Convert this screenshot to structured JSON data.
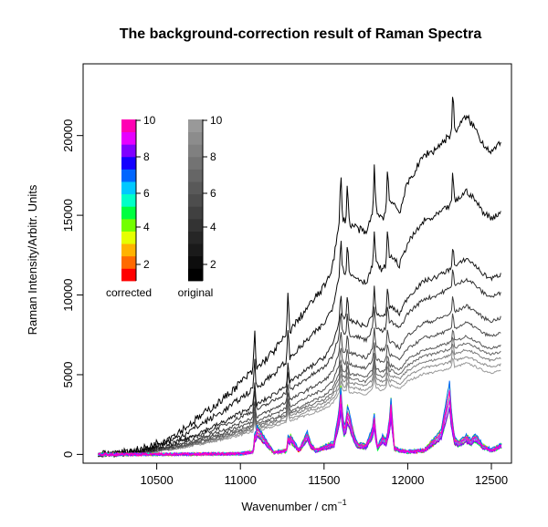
{
  "chart_data": {
    "type": "line",
    "title": "The background-correction result of Raman Spectra",
    "xlabel": "Wavenumber / cm",
    "xlabel_superscript": "−1",
    "ylabel": "Raman Intensity/Arbitr. Units",
    "xlim": [
      10060,
      12620
    ],
    "ylim": [
      -550,
      24500
    ],
    "xticks": [
      10500,
      11000,
      11500,
      12000,
      12500
    ],
    "xtick_labels": [
      "10500",
      "11000",
      "11500",
      "12000",
      "12500"
    ],
    "yticks": [
      0,
      5000,
      10000,
      15000,
      20000
    ],
    "ytick_labels": [
      "0",
      "5000",
      "10000",
      "15000",
      "20000"
    ],
    "grid": false,
    "legend": {
      "placement": "top-left",
      "colorbars": [
        {
          "label": "corrected",
          "ticks": [
            "2",
            "4",
            "6",
            "8",
            "10"
          ],
          "colors": [
            "#ff0000",
            "#ff6a00",
            "#ffb300",
            "#e5ff00",
            "#73ff00",
            "#00ff40",
            "#00ffc8",
            "#00c8ff",
            "#0066ff",
            "#1400ff",
            "#8000ff",
            "#e600ff",
            "#ff00b3"
          ]
        },
        {
          "label": "original",
          "ticks": [
            "2",
            "4",
            "6",
            "8",
            "10"
          ],
          "colors": [
            "#000000",
            "#0d0d0d",
            "#1a1a1a",
            "#262626",
            "#333333",
            "#404040",
            "#4d4d4d",
            "#595959",
            "#666666",
            "#737373",
            "#808080",
            "#8c8c8c",
            "#999999"
          ]
        }
      ]
    },
    "original_envelope": {
      "x": [
        10150,
        10300,
        10400,
        10500,
        10600,
        10700,
        10800,
        10900,
        11000,
        11050,
        11100,
        11200,
        11300,
        11400,
        11500,
        11550,
        11600,
        11630,
        11700,
        11750,
        11800,
        11850,
        11900,
        11950,
        12000,
        12100,
        12150,
        12200,
        12250,
        12300,
        12350,
        12400,
        12450,
        12500,
        12560
      ],
      "y": [
        0,
        100,
        300,
        700,
        1200,
        1900,
        2700,
        3500,
        4500,
        5000,
        5400,
        6500,
        7800,
        9200,
        10500,
        11800,
        15000,
        14600,
        14200,
        13800,
        15500,
        14800,
        16000,
        15200,
        17000,
        18800,
        19000,
        19500,
        20000,
        20500,
        21200,
        20500,
        19500,
        19000,
        19500
      ]
    },
    "original_scale": [
      1.0,
      0.78,
      0.58,
      0.52,
      0.44,
      0.39,
      0.35,
      0.33,
      0.31,
      0.29,
      0.27
    ],
    "corrected_profile": {
      "x": [
        10150,
        10500,
        11000,
        11080,
        11100,
        11200,
        11280,
        11300,
        11350,
        11400,
        11420,
        11450,
        11500,
        11560,
        11600,
        11620,
        11650,
        11680,
        11700,
        11750,
        11800,
        11820,
        11850,
        11880,
        11900,
        11920,
        11950,
        12000,
        12100,
        12200,
        12250,
        12270,
        12300,
        12350,
        12380,
        12400,
        12450,
        12500,
        12560
      ],
      "y": [
        0,
        0,
        50,
        200,
        1800,
        150,
        300,
        1200,
        300,
        1400,
        700,
        300,
        500,
        800,
        3500,
        1800,
        2600,
        1200,
        700,
        600,
        1900,
        500,
        1200,
        700,
        3500,
        500,
        300,
        200,
        300,
        1500,
        4500,
        1200,
        800,
        1200,
        900,
        1300,
        600,
        300,
        700
      ]
    },
    "peaks": [
      11085,
      11285,
      11600,
      11640,
      11800,
      11880,
      12270
    ]
  }
}
